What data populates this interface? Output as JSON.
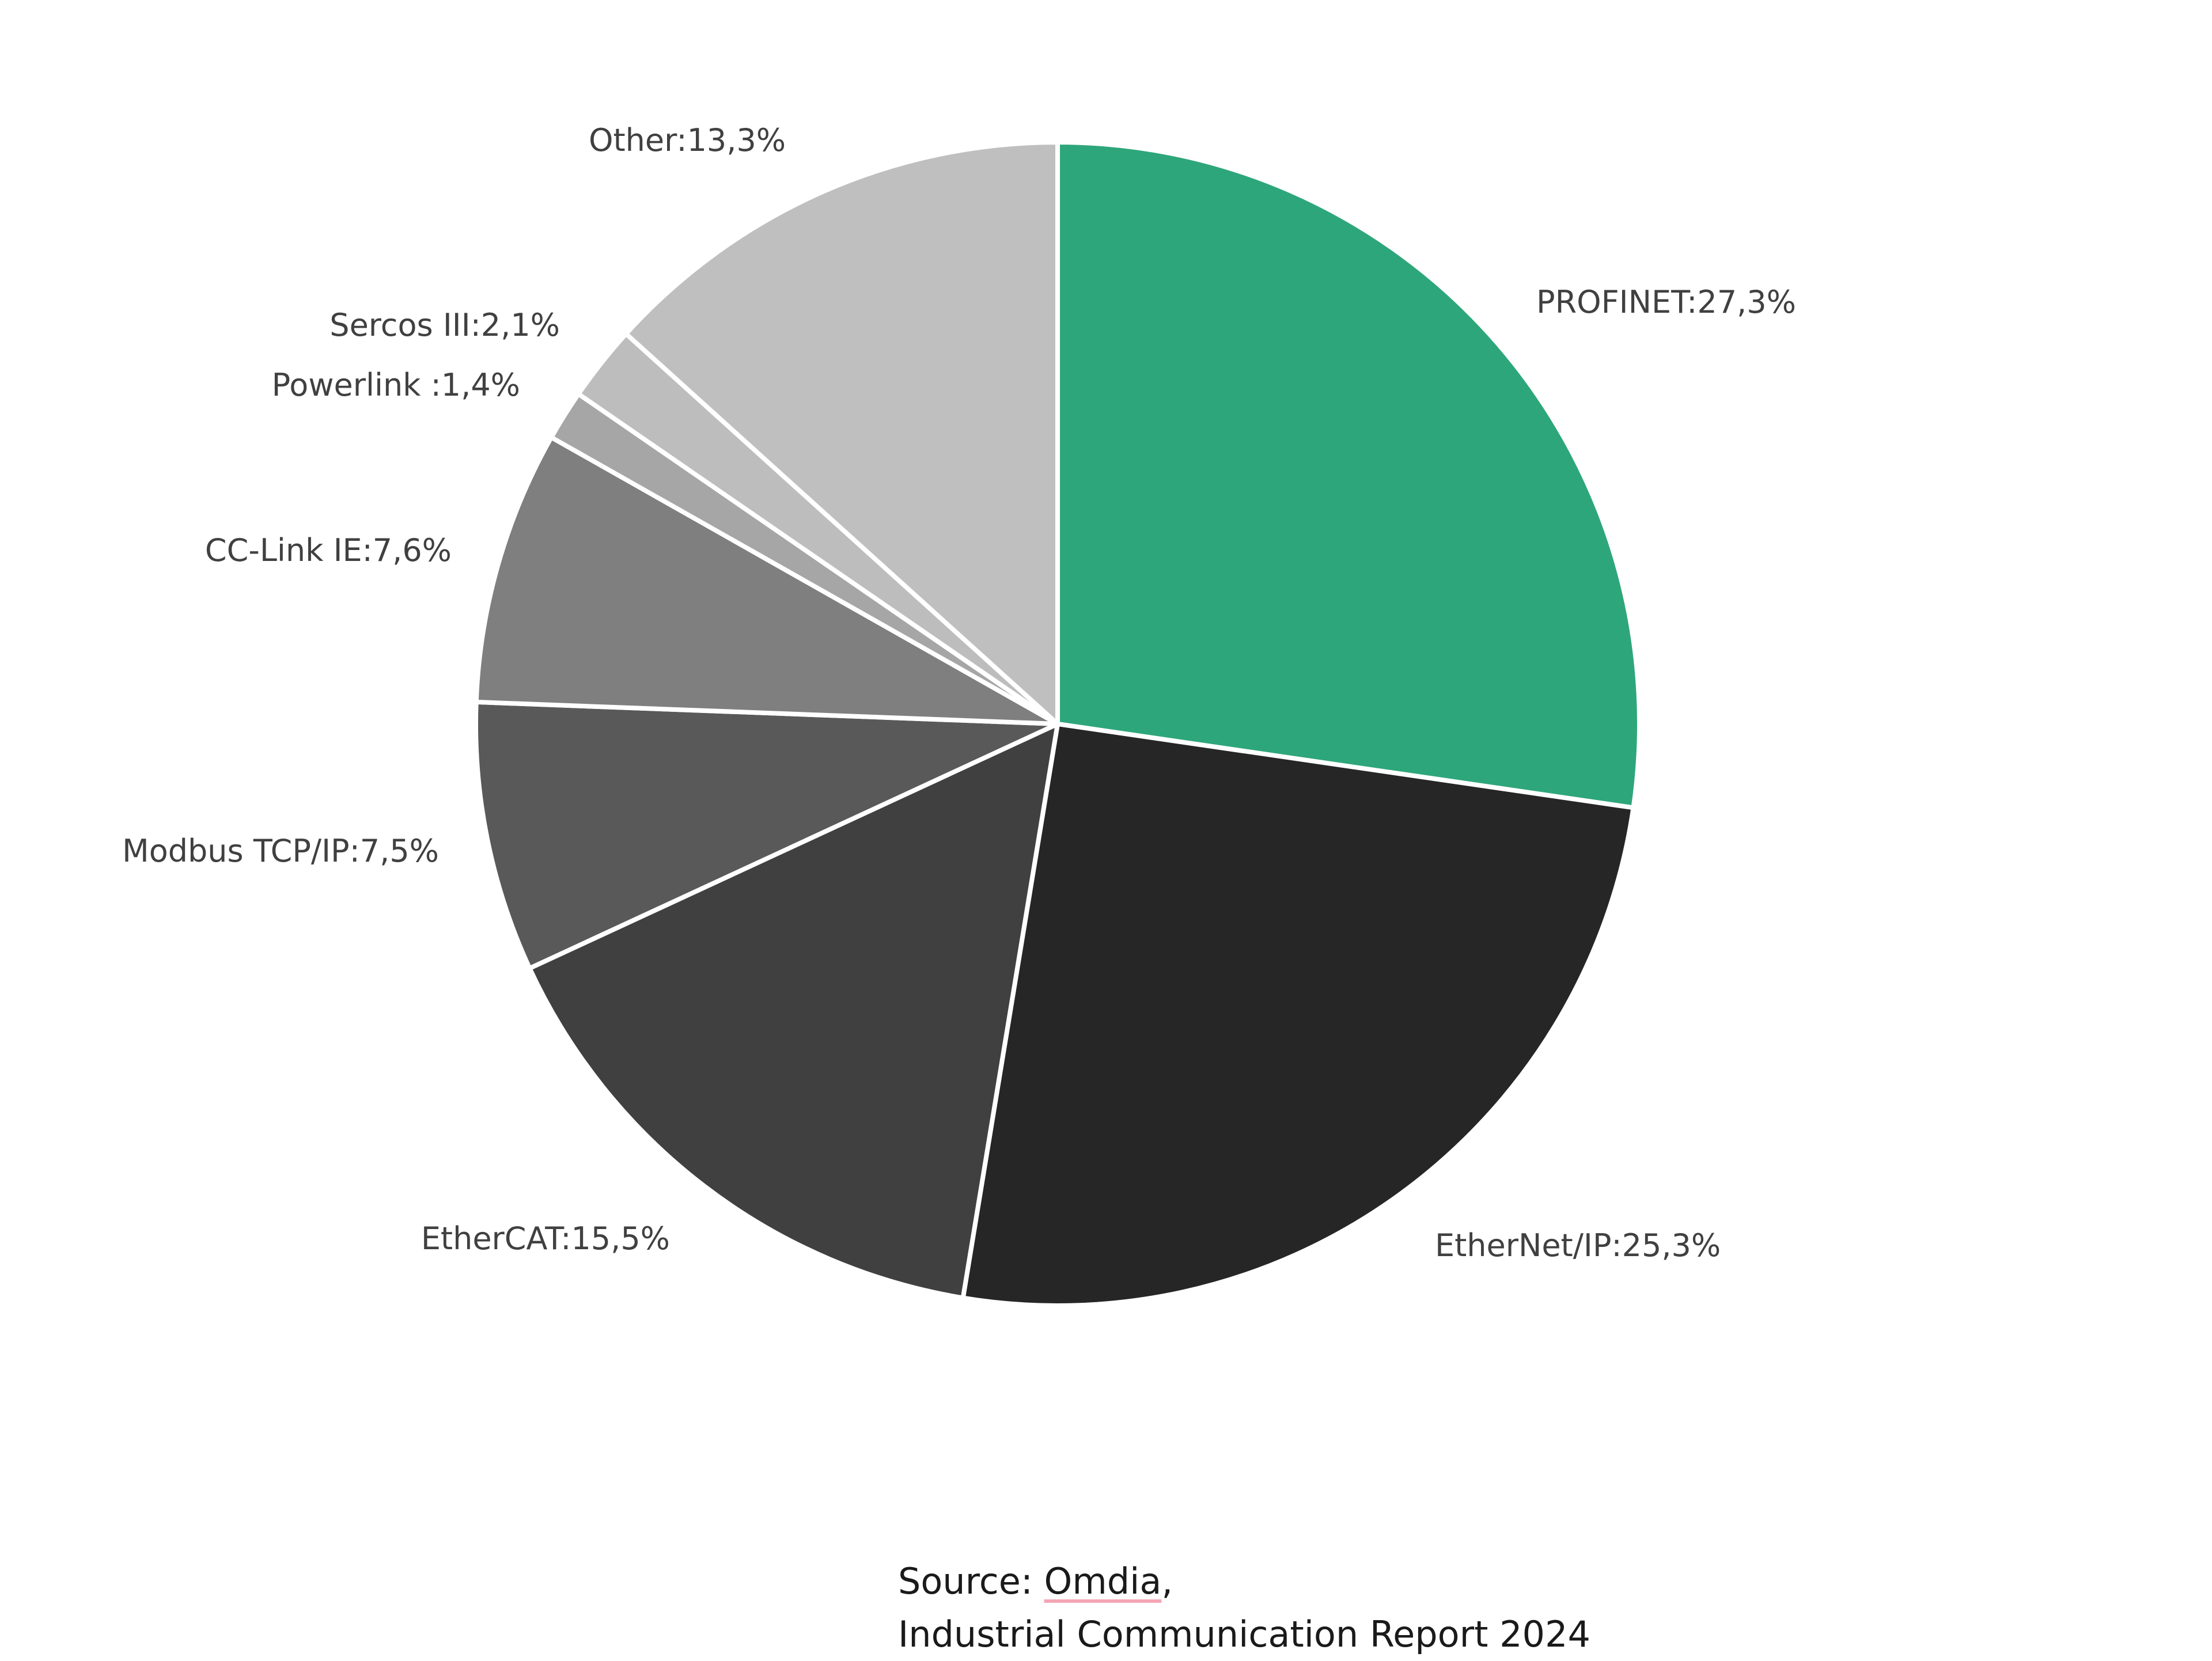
{
  "chart_data": {
    "type": "pie",
    "title": "",
    "start": "12 o'clock, clockwise",
    "slices": [
      {
        "name": "PROFINET",
        "value": 27.3,
        "label": "PROFINET:27,3%",
        "color": "#2ea67b"
      },
      {
        "name": "EtherNet/IP",
        "value": 25.3,
        "label": "EtherNet/IP:25,3%",
        "color": "#262626"
      },
      {
        "name": "EtherCAT",
        "value": 15.5,
        "label": "EtherCAT:15,5%",
        "color": "#404040"
      },
      {
        "name": "Modbus TCP/IP",
        "value": 7.5,
        "label": "Modbus TCP/IP:7,5%",
        "color": "#595959"
      },
      {
        "name": "CC-Link IE",
        "value": 7.6,
        "label": "CC-Link IE:7,6%",
        "color": "#7f7f7f"
      },
      {
        "name": "Powerlink",
        "value": 1.4,
        "label": "Powerlink :1,4%",
        "color": "#a6a6a6"
      },
      {
        "name": "Sercos III",
        "value": 2.1,
        "label": "Sercos III:2,1%",
        "color": "#bdbdbd"
      },
      {
        "name": "Other",
        "value": 13.3,
        "label": "Other:13,3%",
        "color": "#bfbfbf"
      }
    ]
  },
  "source": {
    "prefix": "Source: ",
    "name": "Omdia",
    "suffix": ",",
    "line2": "Industrial Communication Report 2024"
  }
}
